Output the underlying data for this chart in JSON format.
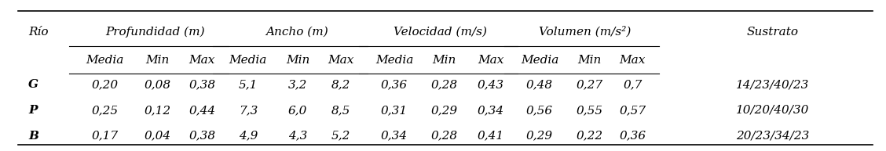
{
  "title": "",
  "col1_header": "Río",
  "group_headers": [
    {
      "label": "Profundidad (m)",
      "cols": [
        "Media",
        "Min",
        "Max"
      ]
    },
    {
      "label": "Ancho (m)",
      "cols": [
        "Media",
        "Min",
        "Max"
      ]
    },
    {
      "label": "Velocidad (m/s)",
      "cols": [
        "Media",
        "Min",
        "Max"
      ]
    },
    {
      "label": "Volumen (m/s²)",
      "cols": [
        "Media",
        "Min",
        "Max"
      ]
    },
    {
      "label": "Sustrato",
      "cols": []
    }
  ],
  "rows": [
    {
      "rio": "G",
      "profundidad": [
        "0,20",
        "0,08",
        "0,38"
      ],
      "ancho": [
        "5,1",
        "3,2",
        "8,2"
      ],
      "velocidad": [
        "0,36",
        "0,28",
        "0,43"
      ],
      "volumen": [
        "0,48",
        "0,27",
        "0,7"
      ],
      "sustrato": "14/23/40/23"
    },
    {
      "rio": "P",
      "profundidad": [
        "0,25",
        "0,12",
        "0,44"
      ],
      "ancho": [
        "7,3",
        "6,0",
        "8,5"
      ],
      "velocidad": [
        "0,31",
        "0,29",
        "0,34"
      ],
      "volumen": [
        "0,56",
        "0,55",
        "0,57"
      ],
      "sustrato": "10/20/40/30"
    },
    {
      "rio": "B",
      "profundidad": [
        "0,17",
        "0,04",
        "0,38"
      ],
      "ancho": [
        "4,9",
        "4,3",
        "5,2"
      ],
      "velocidad": [
        "0,34",
        "0,28",
        "0,41"
      ],
      "volumen": [
        "0,29",
        "0,22",
        "0,36"
      ],
      "sustrato": "20/23/34/23"
    }
  ],
  "bg_color": "#ffffff",
  "text_color": "#000000",
  "font_size": 11,
  "header_font_size": 11
}
